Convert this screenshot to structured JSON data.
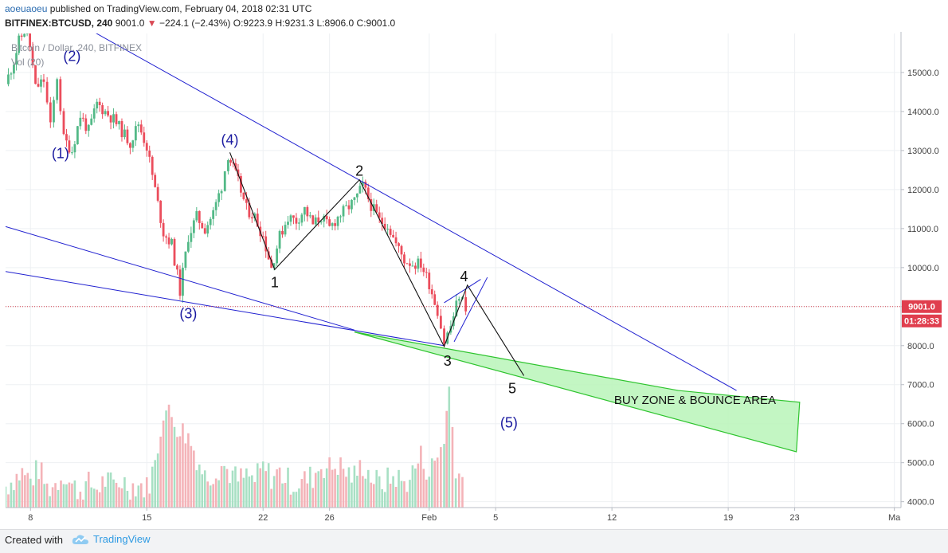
{
  "header": {
    "author": "aoeuaoeu",
    "published_text": "published on TradingView.com, February 04, 2018 02:31 UTC",
    "symbol": "BITFINEX:BTCUSD, 240",
    "last": "9001.0",
    "change_arrow": "▼",
    "change": "−224.1 (−2.43%)",
    "ohlc": "O:9223.9 H:9231.3 L:8906.0 C:9001.0"
  },
  "chart_data": {
    "type": "candlestick",
    "title": "Bitcoin / Dollar, 240, BITFINEX",
    "volume_label": "Vol (20)",
    "ylim": [
      3850,
      16000
    ],
    "y_ticks": [
      4000,
      5000,
      6000,
      7000,
      8000,
      9000,
      10000,
      11000,
      12000,
      13000,
      14000,
      15000
    ],
    "y_tick_labels": [
      "4000.0",
      "5000.0",
      "6000.0",
      "7000.0",
      "8000.0",
      "9000.0",
      "10000.0",
      "11000.0",
      "12000.0",
      "13000.0",
      "14000.0",
      "15000.0"
    ],
    "x_day_range": [
      3.5,
      32.3
    ],
    "x_ticks": [
      {
        "day": 5,
        "label": "8"
      },
      {
        "day": 12,
        "label": "15"
      },
      {
        "day": 19,
        "label": "22"
      },
      {
        "day": 23,
        "label": "26"
      },
      {
        "day": 29,
        "label": "Feb"
      },
      {
        "day": 33,
        "label": "5"
      },
      {
        "day": 40,
        "label": "12"
      },
      {
        "day": 47,
        "label": "19"
      },
      {
        "day": 51,
        "label": "23"
      },
      {
        "day": 57,
        "label": "Ma"
      }
    ],
    "x_full_range": [
      3.5,
      57.4
    ],
    "last_price": 9001.0,
    "last_price_label": "9001.0",
    "countdown_label": "01:28:33",
    "up_color": "#53b987",
    "down_color": "#eb4d5c",
    "close_path": [
      [
        3.5,
        14700
      ],
      [
        4.0,
        15300
      ],
      [
        4.3,
        15800
      ],
      [
        4.8,
        16200
      ],
      [
        5.3,
        14600
      ],
      [
        5.8,
        14800
      ],
      [
        6.2,
        13600
      ],
      [
        6.6,
        14900
      ],
      [
        7.0,
        13300
      ],
      [
        7.5,
        13000
      ],
      [
        8.0,
        13900
      ],
      [
        8.5,
        13500
      ],
      [
        9.0,
        14200
      ],
      [
        9.5,
        14000
      ],
      [
        10.0,
        13800
      ],
      [
        10.5,
        13500
      ],
      [
        11.0,
        13200
      ],
      [
        11.5,
        13700
      ],
      [
        12.0,
        13100
      ],
      [
        12.5,
        12000
      ],
      [
        13.0,
        10900
      ],
      [
        13.5,
        10600
      ],
      [
        14.0,
        9400
      ],
      [
        14.5,
        10800
      ],
      [
        15.0,
        11300
      ],
      [
        15.5,
        11000
      ],
      [
        16.0,
        11400
      ],
      [
        16.5,
        12100
      ],
      [
        16.9,
        12900
      ],
      [
        17.5,
        12200
      ],
      [
        18.0,
        11500
      ],
      [
        18.5,
        11300
      ],
      [
        19.0,
        10800
      ],
      [
        19.5,
        10000
      ],
      [
        20.0,
        10800
      ],
      [
        20.5,
        11300
      ],
      [
        21.0,
        11200
      ],
      [
        21.5,
        11500
      ],
      [
        22.0,
        11100
      ],
      [
        22.5,
        11300
      ],
      [
        23.0,
        11000
      ],
      [
        23.5,
        11300
      ],
      [
        24.0,
        11500
      ],
      [
        24.5,
        11700
      ],
      [
        25.0,
        12100
      ],
      [
        25.5,
        11600
      ],
      [
        26.0,
        11200
      ],
      [
        26.5,
        11100
      ],
      [
        27.0,
        10600
      ],
      [
        27.5,
        10200
      ],
      [
        28.0,
        10100
      ],
      [
        28.5,
        10100
      ],
      [
        29.0,
        9600
      ],
      [
        29.5,
        8900
      ],
      [
        29.9,
        8100
      ],
      [
        30.3,
        8500
      ],
      [
        30.8,
        9300
      ],
      [
        31.2,
        9000
      ]
    ],
    "volume": [
      [
        3.5,
        4350
      ],
      [
        4.0,
        4550
      ],
      [
        4.5,
        4700
      ],
      [
        5.0,
        4500
      ],
      [
        5.5,
        4800
      ],
      [
        6.0,
        4300
      ],
      [
        6.5,
        4400
      ],
      [
        7.0,
        4700
      ],
      [
        7.5,
        4350
      ],
      [
        8.0,
        4250
      ],
      [
        8.5,
        4400
      ],
      [
        9.0,
        4300
      ],
      [
        9.5,
        4500
      ],
      [
        10.0,
        4350
      ],
      [
        10.5,
        4500
      ],
      [
        11.0,
        4350
      ],
      [
        11.5,
        4400
      ],
      [
        12.0,
        4300
      ],
      [
        12.5,
        4900
      ],
      [
        13.0,
        6300
      ],
      [
        13.5,
        6100
      ],
      [
        14.0,
        5800
      ],
      [
        14.5,
        5600
      ],
      [
        15.0,
        5100
      ],
      [
        15.5,
        4600
      ],
      [
        16.0,
        4700
      ],
      [
        16.5,
        4900
      ],
      [
        17.0,
        4700
      ],
      [
        17.5,
        4500
      ],
      [
        18.0,
        4600
      ],
      [
        18.5,
        4500
      ],
      [
        19.0,
        4800
      ],
      [
        19.5,
        4600
      ],
      [
        20.0,
        4700
      ],
      [
        20.5,
        4500
      ],
      [
        21.0,
        4400
      ],
      [
        21.5,
        4500
      ],
      [
        22.0,
        4600
      ],
      [
        22.5,
        4900
      ],
      [
        23.0,
        4800
      ],
      [
        23.5,
        4900
      ],
      [
        24.0,
        4700
      ],
      [
        24.5,
        4600
      ],
      [
        25.0,
        4900
      ],
      [
        25.5,
        4600
      ],
      [
        26.0,
        4400
      ],
      [
        26.5,
        4500
      ],
      [
        27.0,
        4600
      ],
      [
        27.5,
        4400
      ],
      [
        28.0,
        4700
      ],
      [
        28.5,
        5100
      ],
      [
        29.0,
        4700
      ],
      [
        29.5,
        5100
      ],
      [
        29.9,
        5600
      ],
      [
        30.2,
        6800
      ],
      [
        30.6,
        4900
      ],
      [
        31.0,
        4500
      ],
      [
        31.2,
        4300
      ]
    ],
    "annotations": [
      {
        "text": "(1)",
        "day": 6.8,
        "price": 12800,
        "color": "#1a1aa0"
      },
      {
        "text": "(2)",
        "day": 7.5,
        "price": 15300,
        "color": "#1a1aa0"
      },
      {
        "text": "(3)",
        "day": 14.5,
        "price": 8700,
        "color": "#1a1aa0"
      },
      {
        "text": "(4)",
        "day": 17.0,
        "price": 13150,
        "color": "#1a1aa0"
      },
      {
        "text": "(5)",
        "day": 33.8,
        "price": 5900,
        "color": "#1a1aa0"
      },
      {
        "text": "1",
        "day": 19.7,
        "price": 9500,
        "color": "#111111"
      },
      {
        "text": "2",
        "day": 24.8,
        "price": 12350,
        "color": "#111111"
      },
      {
        "text": "3",
        "day": 30.1,
        "price": 7480,
        "color": "#111111"
      },
      {
        "text": "4",
        "day": 31.1,
        "price": 9650,
        "color": "#111111"
      },
      {
        "text": "5",
        "day": 34.0,
        "price": 6780,
        "color": "#111111"
      },
      {
        "text": "BUY ZONE & BOUNCE AREA",
        "day": 45.0,
        "price": 6500,
        "color": "#111111"
      }
    ],
    "trendlines": [
      {
        "color": "#2020d0",
        "from": [
          3.5,
          17300
        ],
        "to": [
          47.5,
          6850
        ]
      },
      {
        "color": "#2020d0",
        "from": [
          3.5,
          11050
        ],
        "to": [
          24.5,
          8400
        ]
      },
      {
        "color": "#2020d0",
        "from": [
          3.5,
          9900
        ],
        "to": [
          29.9,
          8000
        ]
      },
      {
        "color": "#2020d0",
        "from": [
          30.5,
          8100
        ],
        "to": [
          32.5,
          9750
        ]
      },
      {
        "color": "#2020d0",
        "from": [
          29.9,
          9100
        ],
        "to": [
          32.1,
          9700
        ]
      }
    ],
    "wave_path": [
      [
        17.0,
        12950
      ],
      [
        19.7,
        9950
      ],
      [
        24.8,
        12250
      ],
      [
        29.9,
        7980
      ],
      [
        31.3,
        9550
      ],
      [
        34.7,
        7230
      ]
    ],
    "buy_zone": {
      "fill": "#b9f5b9",
      "stroke": "#2ec42e",
      "points": [
        [
          24.5,
          8350
        ],
        [
          44.0,
          6850
        ],
        [
          51.3,
          6550
        ],
        [
          51.1,
          5280
        ],
        [
          24.5,
          8350
        ]
      ]
    },
    "branding": "TradingView"
  },
  "footer": {
    "created_with": "Created with",
    "brand": "TradingView"
  }
}
